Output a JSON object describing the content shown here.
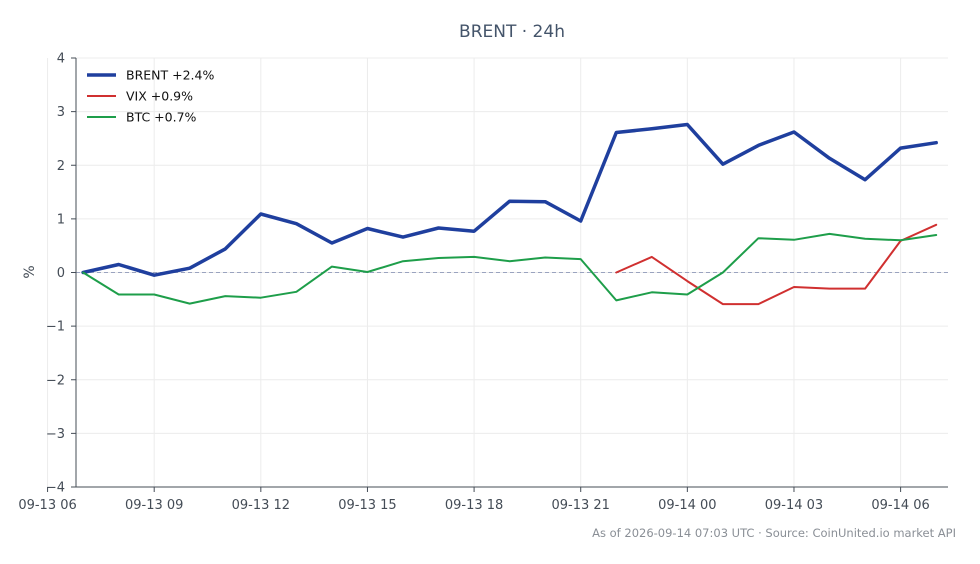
{
  "chart_data": {
    "type": "line",
    "title": "BRENT · 24h",
    "ylabel": "%",
    "xlabel": "",
    "ylim": [
      -4,
      4
    ],
    "yticks": [
      4,
      3,
      2,
      1,
      0,
      -1,
      -2,
      -3,
      -4
    ],
    "ytick_labels": [
      "4",
      "3",
      "2",
      "1",
      "0",
      "−1",
      "−2",
      "−3",
      "−4"
    ],
    "xlim": [
      "2026-09-13 06:48",
      "2026-09-14 07:20"
    ],
    "xticks": [
      "2026-09-13 06:00",
      "2026-09-13 09:00",
      "2026-09-13 12:00",
      "2026-09-13 15:00",
      "2026-09-13 18:00",
      "2026-09-13 21:00",
      "2026-09-14 00:00",
      "2026-09-14 03:00",
      "2026-09-14 06:00"
    ],
    "xtick_labels": [
      "09-13 06",
      "09-13 09",
      "09-13 12",
      "09-13 15",
      "09-13 18",
      "09-13 21",
      "09-14 00",
      "09-14 03",
      "09-14 06"
    ],
    "grid": true,
    "zero_line": true,
    "legend_position": "top-left",
    "series": [
      {
        "name": "BRENT +2.4%",
        "color": "#1f3f9e",
        "x": [
          "2026-09-13 07:00",
          "2026-09-13 08:00",
          "2026-09-13 09:00",
          "2026-09-13 10:00",
          "2026-09-13 11:00",
          "2026-09-13 12:00",
          "2026-09-13 13:00",
          "2026-09-13 14:00",
          "2026-09-13 15:00",
          "2026-09-13 16:00",
          "2026-09-13 17:00",
          "2026-09-13 18:00",
          "2026-09-13 19:00",
          "2026-09-13 20:00",
          "2026-09-13 21:00",
          "2026-09-13 22:00",
          "2026-09-13 23:00",
          "2026-09-14 00:00",
          "2026-09-14 01:00",
          "2026-09-14 02:00",
          "2026-09-14 03:00",
          "2026-09-14 04:00",
          "2026-09-14 05:00",
          "2026-09-14 06:00",
          "2026-09-14 07:00"
        ],
        "values": [
          0.0,
          0.15,
          -0.05,
          0.08,
          0.44,
          1.09,
          0.91,
          0.55,
          0.82,
          0.66,
          0.83,
          0.77,
          1.33,
          1.32,
          0.96,
          2.61,
          2.68,
          2.76,
          2.02,
          2.37,
          2.62,
          2.13,
          1.73,
          2.32,
          2.42
        ]
      },
      {
        "name": "VIX +0.9%",
        "color": "#d03030",
        "x": [
          "2026-09-13 22:00",
          "2026-09-13 23:00",
          "2026-09-14 00:00",
          "2026-09-14 01:00",
          "2026-09-14 02:00",
          "2026-09-14 03:00",
          "2026-09-14 04:00",
          "2026-09-14 05:00",
          "2026-09-14 06:00",
          "2026-09-14 07:00"
        ],
        "values": [
          0.0,
          0.29,
          -0.16,
          -0.59,
          -0.59,
          -0.27,
          -0.3,
          -0.3,
          0.59,
          0.89
        ]
      },
      {
        "name": "BTC +0.7%",
        "color": "#1e9e4a",
        "x": [
          "2026-09-13 07:00",
          "2026-09-13 08:00",
          "2026-09-13 09:00",
          "2026-09-13 10:00",
          "2026-09-13 11:00",
          "2026-09-13 12:00",
          "2026-09-13 13:00",
          "2026-09-13 14:00",
          "2026-09-13 15:00",
          "2026-09-13 16:00",
          "2026-09-13 17:00",
          "2026-09-13 18:00",
          "2026-09-13 19:00",
          "2026-09-13 20:00",
          "2026-09-13 21:00",
          "2026-09-13 22:00",
          "2026-09-13 23:00",
          "2026-09-14 00:00",
          "2026-09-14 01:00",
          "2026-09-14 02:00",
          "2026-09-14 03:00",
          "2026-09-14 04:00",
          "2026-09-14 05:00",
          "2026-09-14 06:00",
          "2026-09-14 07:00"
        ],
        "values": [
          0.0,
          -0.41,
          -0.41,
          -0.58,
          -0.44,
          -0.47,
          -0.36,
          0.11,
          0.01,
          0.21,
          0.27,
          0.29,
          0.21,
          0.28,
          0.25,
          -0.52,
          -0.37,
          -0.41,
          0.0,
          0.64,
          0.61,
          0.72,
          0.63,
          0.6,
          0.7
        ]
      }
    ],
    "footer": "As of 2026-09-14 07:03 UTC · Source: CoinUnited.io market API"
  }
}
